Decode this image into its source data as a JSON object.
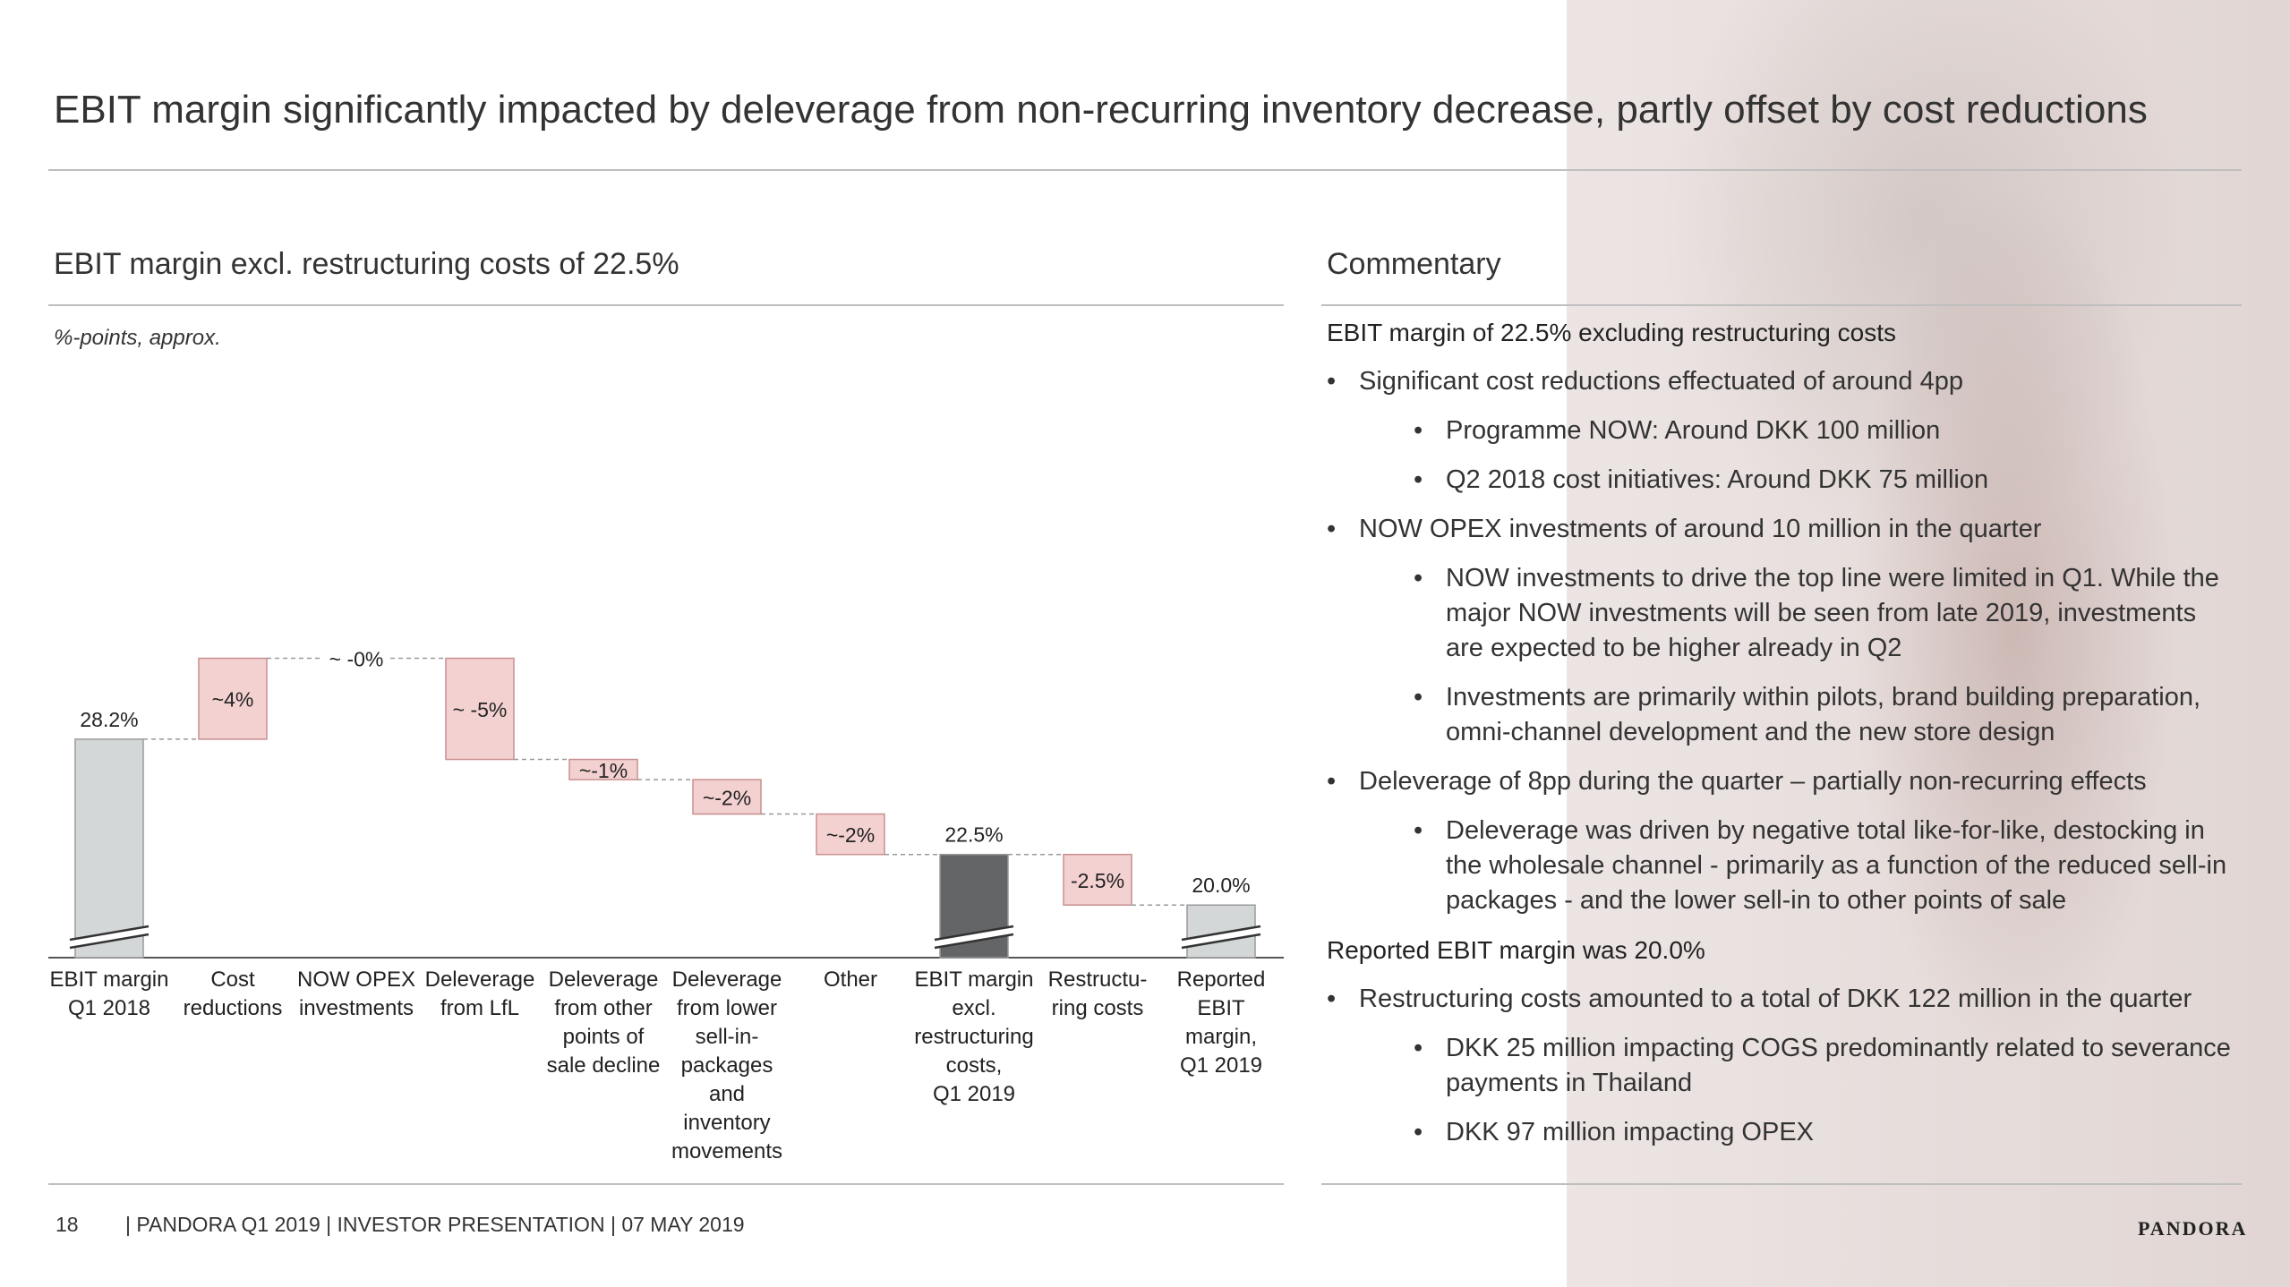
{
  "slide": {
    "title": "EBIT margin significantly impacted by deleverage from non-recurring inventory decrease, partly offset by cost reductions"
  },
  "left": {
    "heading": "EBIT margin excl. restructuring costs of 22.5%",
    "units": "%-points, approx."
  },
  "chart_data": {
    "type": "waterfall",
    "bars": [
      {
        "category": "EBIT margin Q1 2018",
        "kind": "total",
        "start": 0,
        "end": 28.2,
        "label": "28.2%",
        "broken_axis": true,
        "color": "#d4d7d8"
      },
      {
        "category": "Cost reductions",
        "kind": "increase",
        "start": 28.2,
        "end": 32.2,
        "label": "~4%",
        "color": "#f4d1d1"
      },
      {
        "category": "NOW OPEX investments",
        "kind": "delta",
        "start": 32.2,
        "end": 32.2,
        "label": "~ -0%"
      },
      {
        "category": "Deleverage from LfL",
        "kind": "decrease",
        "start": 32.2,
        "end": 27.2,
        "label": "~ -5%",
        "color": "#f4d1d1"
      },
      {
        "category": "Deleverage from other points of sale decline",
        "kind": "decrease",
        "start": 27.2,
        "end": 26.2,
        "label": "~-1%",
        "color": "#f4d1d1"
      },
      {
        "category": "Deleverage from lower sell-in-packages and inventory movements",
        "kind": "decrease",
        "start": 26.2,
        "end": 24.5,
        "label": "~-2%",
        "color": "#f4d1d1"
      },
      {
        "category": "Other",
        "kind": "decrease",
        "start": 24.5,
        "end": 22.5,
        "label": "~-2%",
        "color": "#f4d1d1"
      },
      {
        "category": "EBIT margin excl. restructuring costs, Q1 2019",
        "kind": "total",
        "start": 0,
        "end": 22.5,
        "label": "22.5%",
        "broken_axis": true,
        "color": "#636566"
      },
      {
        "category": "Restructu-ring costs",
        "kind": "decrease",
        "start": 22.5,
        "end": 20.0,
        "label": "-2.5%",
        "color": "#f4d1d1"
      },
      {
        "category": "Reported EBIT margin, Q1 2019",
        "kind": "total",
        "start": 0,
        "end": 20.0,
        "label": "20.0%",
        "broken_axis": true,
        "color": "#d4d7d8"
      }
    ],
    "category_lines": [
      [
        "EBIT margin",
        "Q1 2018"
      ],
      [
        "Cost",
        "reductions"
      ],
      [
        "NOW OPEX",
        "investments"
      ],
      [
        "Deleverage",
        "from LfL"
      ],
      [
        "Deleverage",
        "from other",
        "points of",
        "sale decline"
      ],
      [
        "Deleverage",
        "from lower",
        "sell-in-",
        "packages",
        "and",
        "inventory",
        "movements"
      ],
      [
        "Other"
      ],
      [
        "EBIT margin",
        "excl.",
        "restructuring",
        "costs,",
        "Q1 2019"
      ],
      [
        "Restructu-",
        "ring costs"
      ],
      [
        "Reported",
        "EBIT",
        "margin,",
        "Q1 2019"
      ]
    ]
  },
  "commentary": {
    "heading": "Commentary",
    "items": [
      {
        "level": 0,
        "text": "EBIT margin of 22.5% excluding restructuring costs"
      },
      {
        "level": 1,
        "text": "Significant cost reductions effectuated of around 4pp"
      },
      {
        "level": 2,
        "text": "Programme NOW: Around DKK 100 million"
      },
      {
        "level": 2,
        "text": "Q2 2018 cost initiatives: Around DKK 75 million"
      },
      {
        "level": 1,
        "text": "NOW OPEX investments of around 10 million in the quarter"
      },
      {
        "level": 2,
        "text": "NOW investments to drive the top line were limited in Q1. While the major NOW investments will be seen from late 2019, investments are expected to be higher already in Q2"
      },
      {
        "level": 2,
        "text": "Investments are primarily within pilots, brand building preparation, omni-channel development and the new store design"
      },
      {
        "level": 1,
        "text": "Deleverage of 8pp during the quarter – partially non-recurring effects"
      },
      {
        "level": 2,
        "text": "Deleverage was driven by negative total like-for-like, destocking in the wholesale channel - primarily as a function of the reduced sell-in packages - and the lower sell-in to other points of sale"
      },
      {
        "level": 0,
        "text": "Reported EBIT margin was 20.0%"
      },
      {
        "level": 1,
        "text": "Restructuring costs amounted to a total of DKK 122 million in the quarter"
      },
      {
        "level": 2,
        "text": "DKK 25 million impacting COGS predominantly related to severance payments in Thailand"
      },
      {
        "level": 2,
        "text": "DKK 97 million impacting OPEX"
      }
    ],
    "bullet": "•"
  },
  "footer": {
    "page": "18",
    "text": "| PANDORA Q1 2019 | INVESTOR PRESENTATION | 07 MAY 2019",
    "logo": "PANDORA"
  }
}
